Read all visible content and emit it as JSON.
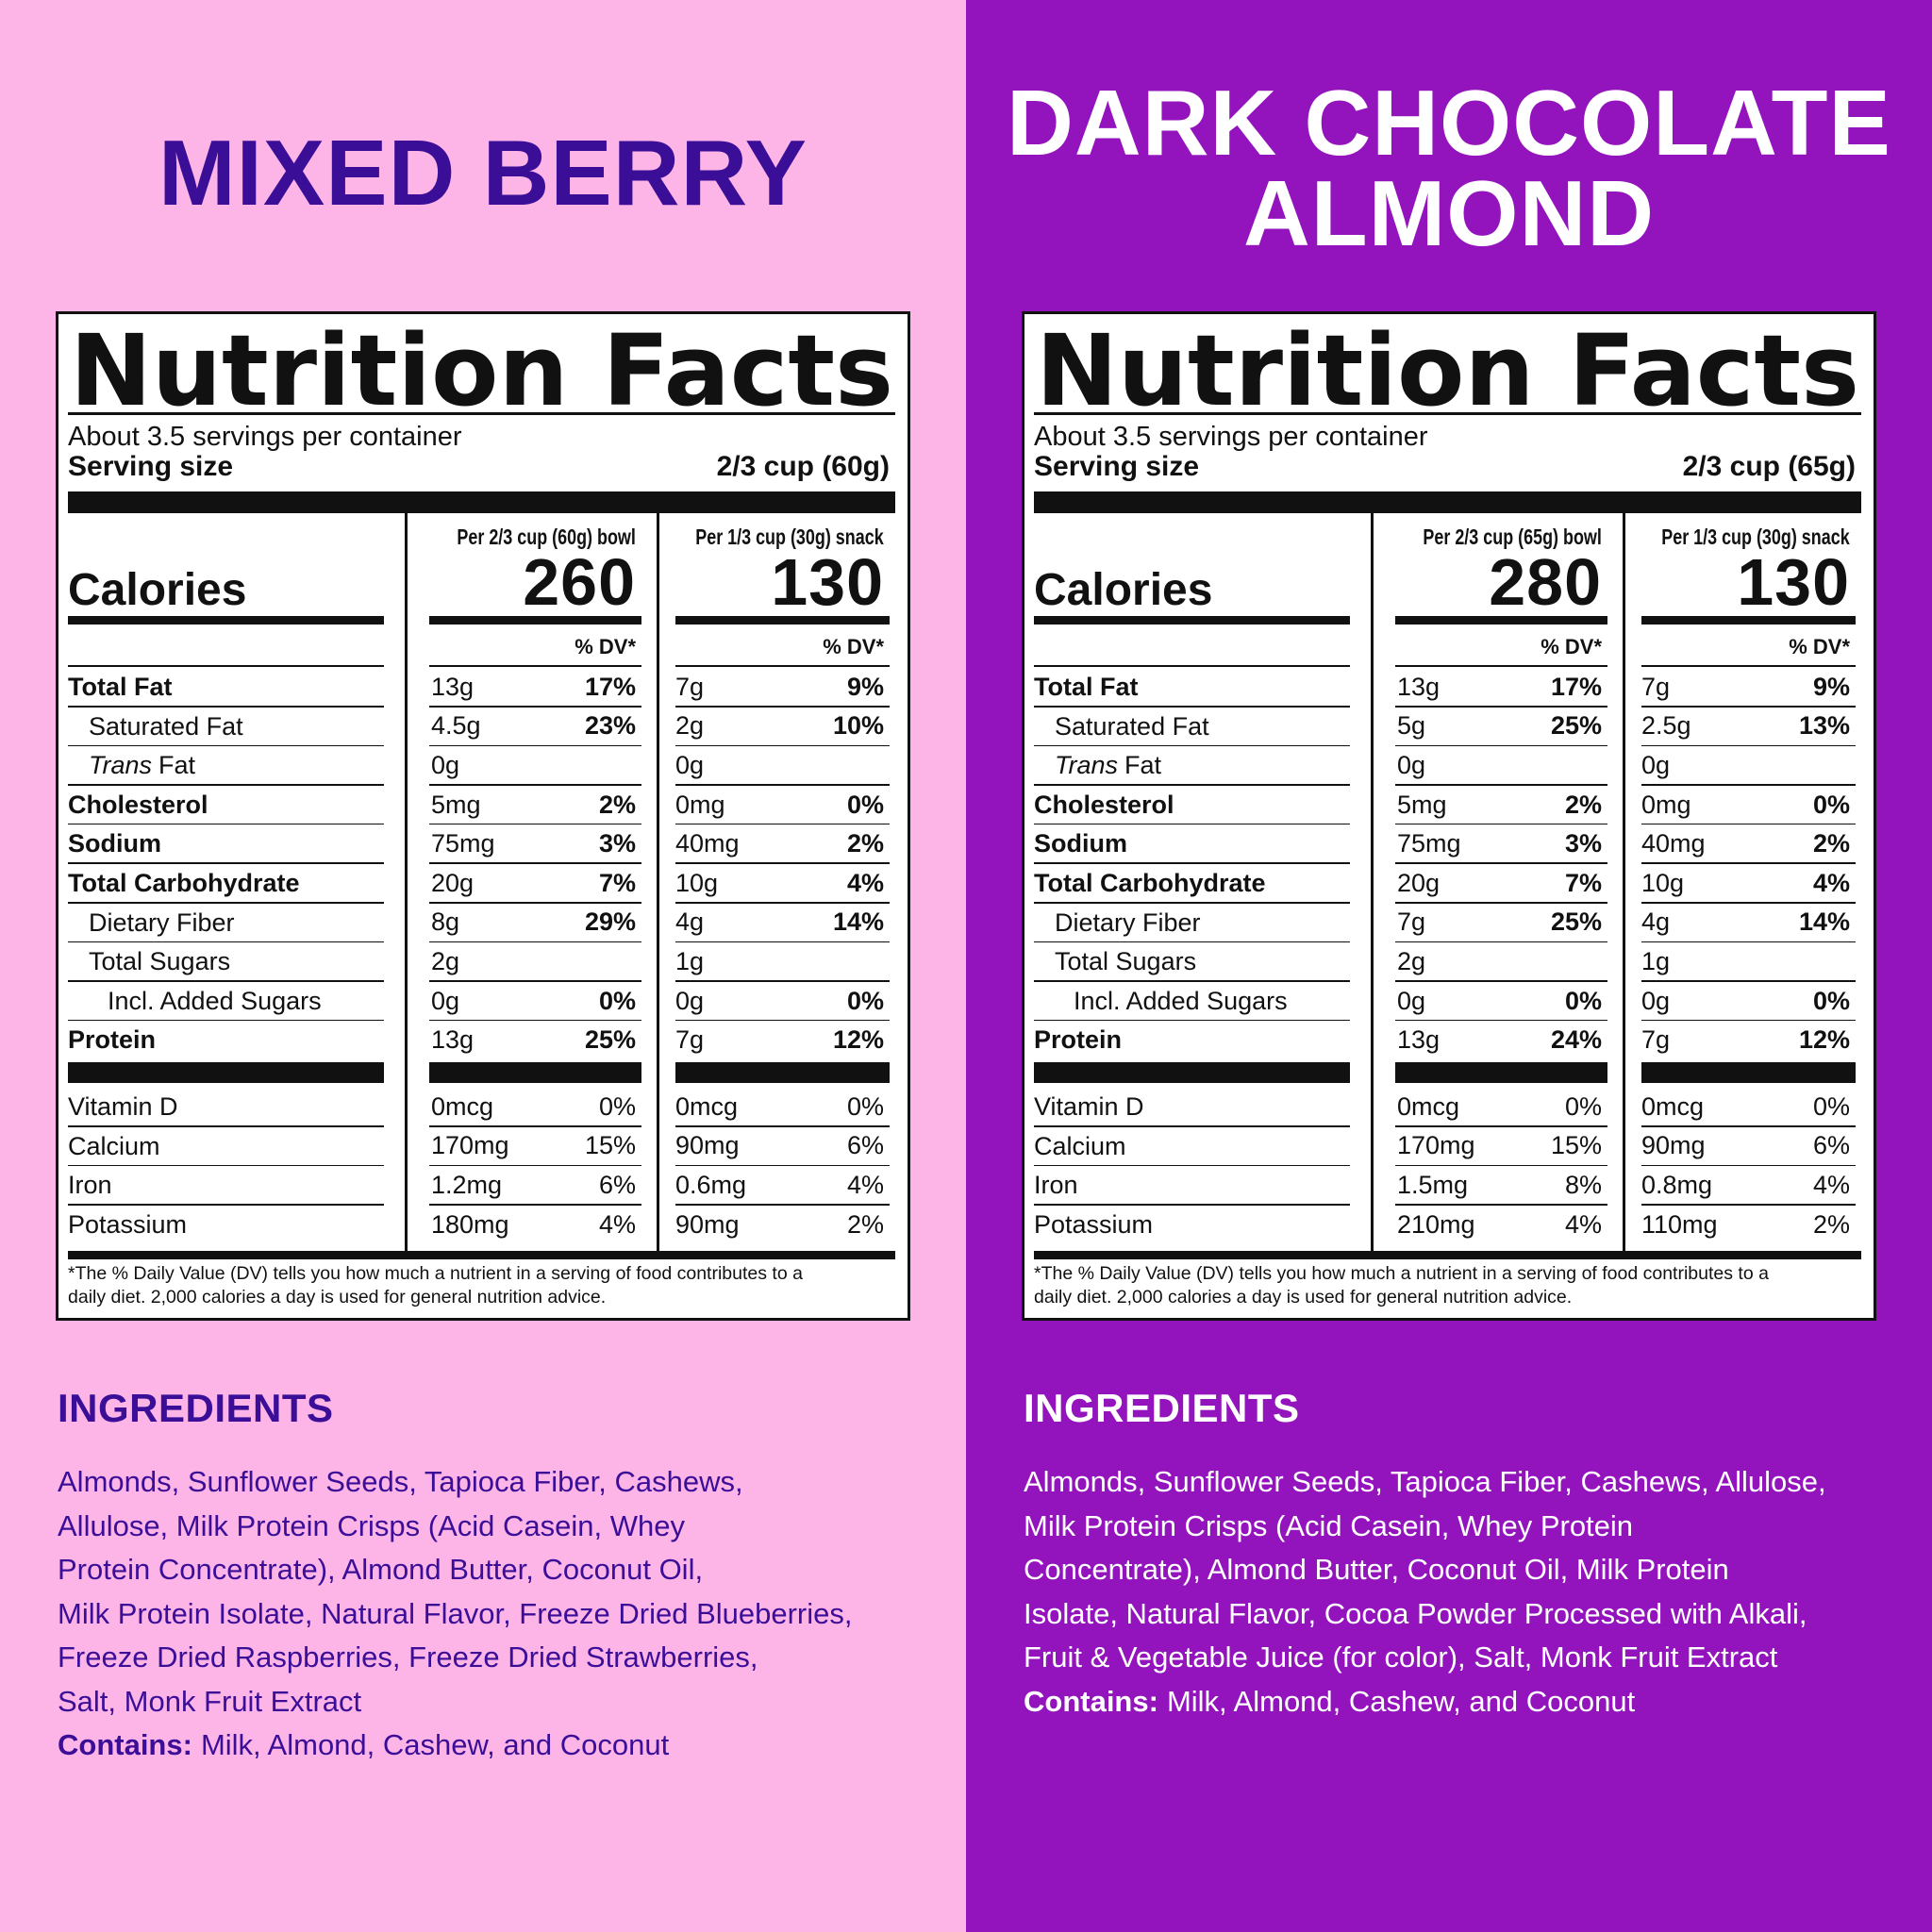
{
  "panels": [
    {
      "title_lines": [
        "MIXED BERRY"
      ],
      "nutrition": {
        "heading": "Nutrition Facts",
        "servings": "About 3.5 servings per container",
        "serving_size_label": "Serving size",
        "serving_size": "2/3 cup (60g)",
        "calories_label": "Calories",
        "dv_label": "% DV*",
        "columns": [
          {
            "header": "Per 2/3 cup (60g) bowl",
            "calories": 260
          },
          {
            "header": "Per 1/3 cup (30g) snack",
            "calories": 130
          }
        ],
        "rows": [
          {
            "name": "Total Fat",
            "bowl_amount": "13g",
            "bowl_dv": "17%",
            "snack_amount": "7g",
            "snack_dv": "9%"
          },
          {
            "name": "Saturated Fat",
            "bowl_amount": "4.5g",
            "bowl_dv": "23%",
            "snack_amount": "2g",
            "snack_dv": "10%"
          },
          {
            "name_italic": "Trans",
            "name": "Fat",
            "bowl_amount": "0g",
            "bowl_dv": null,
            "snack_amount": "0g",
            "snack_dv": null
          },
          {
            "name": "Cholesterol",
            "bowl_amount": "5mg",
            "bowl_dv": "2%",
            "snack_amount": "0mg",
            "snack_dv": "0%"
          },
          {
            "name": "Sodium",
            "bowl_amount": "75mg",
            "bowl_dv": "3%",
            "snack_amount": "40mg",
            "snack_dv": "2%"
          },
          {
            "name": "Total Carbohydrate",
            "bowl_amount": "20g",
            "bowl_dv": "7%",
            "snack_amount": "10g",
            "snack_dv": "4%"
          },
          {
            "name": "Dietary Fiber",
            "bowl_amount": "8g",
            "bowl_dv": "29%",
            "snack_amount": "4g",
            "snack_dv": "14%"
          },
          {
            "name": "Total Sugars",
            "bowl_amount": "2g",
            "bowl_dv": null,
            "snack_amount": "1g",
            "snack_dv": null
          },
          {
            "name": "Incl. Added Sugars",
            "bowl_amount": "0g",
            "bowl_dv": "0%",
            "snack_amount": "0g",
            "snack_dv": "0%"
          },
          {
            "name": "Protein",
            "bowl_amount": "13g",
            "bowl_dv": "25%",
            "snack_amount": "7g",
            "snack_dv": "12%"
          }
        ],
        "vitamins": [
          {
            "name": "Vitamin D",
            "bowl_amount": "0mcg",
            "bowl_dv": "0%",
            "snack_amount": "0mcg",
            "snack_dv": "0%"
          },
          {
            "name": "Calcium",
            "bowl_amount": "170mg",
            "bowl_dv": "15%",
            "snack_amount": "90mg",
            "snack_dv": "6%"
          },
          {
            "name": "Iron",
            "bowl_amount": "1.2mg",
            "bowl_dv": "6%",
            "snack_amount": "0.6mg",
            "snack_dv": "4%"
          },
          {
            "name": "Potassium",
            "bowl_amount": "180mg",
            "bowl_dv": "4%",
            "snack_amount": "90mg",
            "snack_dv": "2%"
          }
        ],
        "footnote_lines": [
          "*The % Daily Value (DV) tells you how much a nutrient in a serving of food contributes to a",
          "daily diet. 2,000 calories a day is used for general nutrition advice."
        ]
      },
      "ingredients_heading": "INGREDIENTS",
      "ingredients_lines": [
        "Almonds, Sunflower Seeds, Tapioca Fiber, Cashews,",
        "Allulose, Milk Protein Crisps (Acid Casein, Whey",
        "Protein Concentrate), Almond Butter, Coconut Oil,",
        "Milk Protein Isolate, Natural Flavor, Freeze Dried Blueberries,",
        "Freeze Dried Raspberries, Freeze Dried Strawberries,",
        "Salt, Monk Fruit Extract"
      ],
      "contains_label": "Contains:",
      "contains": "Milk, Almond, Cashew, and Coconut"
    },
    {
      "title_lines": [
        "DARK CHOCOLATE",
        "ALMOND"
      ],
      "nutrition": {
        "heading": "Nutrition Facts",
        "servings": "About 3.5 servings per container",
        "serving_size_label": "Serving size",
        "serving_size": "2/3 cup (65g)",
        "calories_label": "Calories",
        "dv_label": "% DV*",
        "columns": [
          {
            "header": "Per 2/3 cup (65g) bowl",
            "calories": 280
          },
          {
            "header": "Per 1/3 cup (30g) snack",
            "calories": 130
          }
        ],
        "rows": [
          {
            "name": "Total Fat",
            "bowl_amount": "13g",
            "bowl_dv": "17%",
            "snack_amount": "7g",
            "snack_dv": "9%"
          },
          {
            "name": "Saturated Fat",
            "bowl_amount": "5g",
            "bowl_dv": "25%",
            "snack_amount": "2.5g",
            "snack_dv": "13%"
          },
          {
            "name_italic": "Trans",
            "name": "Fat",
            "bowl_amount": "0g",
            "bowl_dv": null,
            "snack_amount": "0g",
            "snack_dv": null
          },
          {
            "name": "Cholesterol",
            "bowl_amount": "5mg",
            "bowl_dv": "2%",
            "snack_amount": "0mg",
            "snack_dv": "0%"
          },
          {
            "name": "Sodium",
            "bowl_amount": "75mg",
            "bowl_dv": "3%",
            "snack_amount": "40mg",
            "snack_dv": "2%"
          },
          {
            "name": "Total Carbohydrate",
            "bowl_amount": "20g",
            "bowl_dv": "7%",
            "snack_amount": "10g",
            "snack_dv": "4%"
          },
          {
            "name": "Dietary Fiber",
            "bowl_amount": "7g",
            "bowl_dv": "25%",
            "snack_amount": "4g",
            "snack_dv": "14%"
          },
          {
            "name": "Total Sugars",
            "bowl_amount": "2g",
            "bowl_dv": null,
            "snack_amount": "1g",
            "snack_dv": null
          },
          {
            "name": "Incl. Added Sugars",
            "bowl_amount": "0g",
            "bowl_dv": "0%",
            "snack_amount": "0g",
            "snack_dv": "0%"
          },
          {
            "name": "Protein",
            "bowl_amount": "13g",
            "bowl_dv": "24%",
            "snack_amount": "7g",
            "snack_dv": "12%"
          }
        ],
        "vitamins": [
          {
            "name": "Vitamin D",
            "bowl_amount": "0mcg",
            "bowl_dv": "0%",
            "snack_amount": "0mcg",
            "snack_dv": "0%"
          },
          {
            "name": "Calcium",
            "bowl_amount": "170mg",
            "bowl_dv": "15%",
            "snack_amount": "90mg",
            "snack_dv": "6%"
          },
          {
            "name": "Iron",
            "bowl_amount": "1.5mg",
            "bowl_dv": "8%",
            "snack_amount": "0.8mg",
            "snack_dv": "4%"
          },
          {
            "name": "Potassium",
            "bowl_amount": "210mg",
            "bowl_dv": "4%",
            "snack_amount": "110mg",
            "snack_dv": "2%"
          }
        ],
        "footnote_lines": [
          "*The % Daily Value (DV) tells you how much a nutrient in a serving of food contributes to a",
          "daily diet. 2,000 calories a day is used for general nutrition advice."
        ]
      },
      "ingredients_heading": "INGREDIENTS",
      "ingredients_lines": [
        "Almonds, Sunflower Seeds, Tapioca Fiber, Cashews, Allulose,",
        "Milk Protein Crisps (Acid Casein, Whey Protein",
        "Concentrate), Almond Butter, Coconut Oil, Milk Protein",
        "Isolate, Natural Flavor, Cocoa Powder Processed with Alkali,",
        "Fruit & Vegetable Juice (for color), Salt, Monk Fruit Extract"
      ],
      "contains_label": "Contains:",
      "contains": "Milk, Almond, Cashew, and Coconut"
    }
  ]
}
